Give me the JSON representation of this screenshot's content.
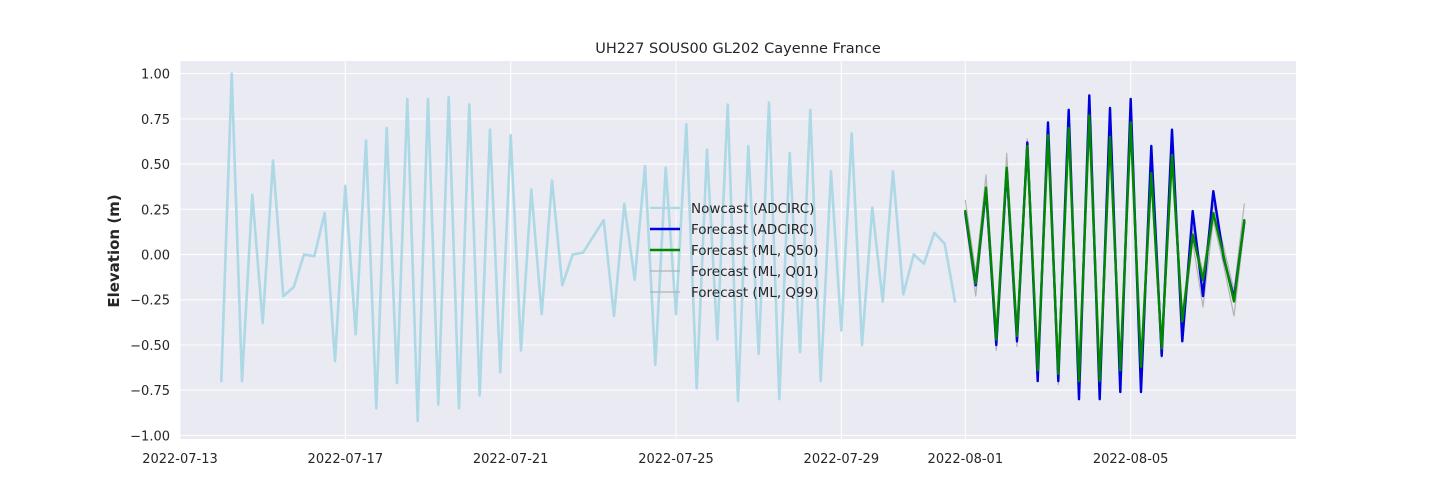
{
  "chart_data": {
    "type": "line",
    "title": "UH227 SOUS00 GL202 Cayenne France",
    "xlabel": "",
    "ylabel": "Elevation (m)",
    "x_axis_type": "date",
    "xlim": [
      "2022-07-13",
      "2022-08-09"
    ],
    "ylim": [
      -1.02,
      1.07
    ],
    "x_ticks": [
      "2022-07-13",
      "2022-07-17",
      "2022-07-21",
      "2022-07-25",
      "2022-07-29",
      "2022-08-01",
      "2022-08-05"
    ],
    "y_ticks": [
      -1.0,
      -0.75,
      -0.5,
      -0.25,
      0.0,
      0.25,
      0.5,
      0.75,
      1.0
    ],
    "y_tick_labels": [
      "−1.00",
      "−0.75",
      "−0.50",
      "−0.25",
      "0.00",
      "0.25",
      "0.50",
      "0.75",
      "1.00"
    ],
    "grid": true,
    "legend_position": "center",
    "series": [
      {
        "name": "Nowcast (ADCIRC)",
        "color": "#add8e6",
        "x": [
          "2022-07-14T00:00",
          "2022-07-14T06:00",
          "2022-07-14T12:00",
          "2022-07-14T18:00",
          "2022-07-15T00:00",
          "2022-07-15T06:00",
          "2022-07-15T12:00",
          "2022-07-15T18:00",
          "2022-07-16T00:00",
          "2022-07-16T06:00",
          "2022-07-16T12:00",
          "2022-07-16T18:00",
          "2022-07-17T00:00",
          "2022-07-17T06:00",
          "2022-07-17T12:00",
          "2022-07-17T18:00",
          "2022-07-18T00:00",
          "2022-07-18T06:00",
          "2022-07-18T12:00",
          "2022-07-18T18:00",
          "2022-07-19T00:00",
          "2022-07-19T06:00",
          "2022-07-19T12:00",
          "2022-07-19T18:00",
          "2022-07-20T00:00",
          "2022-07-20T06:00",
          "2022-07-20T12:00",
          "2022-07-20T18:00",
          "2022-07-21T00:00",
          "2022-07-21T06:00",
          "2022-07-21T12:00",
          "2022-07-21T18:00",
          "2022-07-22T00:00",
          "2022-07-22T06:00",
          "2022-07-22T12:00",
          "2022-07-22T18:00",
          "2022-07-23T00:00",
          "2022-07-23T06:00",
          "2022-07-23T12:00",
          "2022-07-23T18:00",
          "2022-07-24T00:00",
          "2022-07-24T06:00",
          "2022-07-24T12:00",
          "2022-07-24T18:00",
          "2022-07-25T00:00",
          "2022-07-25T06:00",
          "2022-07-25T12:00",
          "2022-07-25T18:00",
          "2022-07-26T00:00",
          "2022-07-26T06:00",
          "2022-07-26T12:00",
          "2022-07-26T18:00",
          "2022-07-27T00:00",
          "2022-07-27T06:00",
          "2022-07-27T12:00",
          "2022-07-27T18:00",
          "2022-07-28T00:00",
          "2022-07-28T06:00",
          "2022-07-28T12:00",
          "2022-07-28T18:00",
          "2022-07-29T00:00",
          "2022-07-29T06:00",
          "2022-07-29T12:00",
          "2022-07-29T18:00",
          "2022-07-30T00:00",
          "2022-07-30T06:00",
          "2022-07-30T12:00",
          "2022-07-30T18:00",
          "2022-07-31T00:00",
          "2022-07-31T06:00",
          "2022-07-31T12:00",
          "2022-07-31T18:00"
        ],
        "y": [
          -0.7,
          1.0,
          -0.7,
          0.33,
          -0.38,
          0.52,
          -0.23,
          -0.18,
          0.0,
          -0.01,
          0.23,
          -0.59,
          0.38,
          -0.44,
          0.63,
          -0.85,
          0.7,
          -0.71,
          0.86,
          -0.92,
          0.86,
          -0.83,
          0.87,
          -0.85,
          0.83,
          -0.78,
          0.69,
          -0.65,
          0.66,
          -0.53,
          0.36,
          -0.33,
          0.41,
          -0.17,
          0.0,
          0.01,
          0.1,
          0.19,
          -0.34,
          0.28,
          -0.14,
          0.49,
          -0.61,
          0.48,
          -0.33,
          0.72,
          -0.74,
          0.58,
          -0.47,
          0.83,
          -0.81,
          0.6,
          -0.55,
          0.84,
          -0.8,
          0.56,
          -0.54,
          0.8,
          -0.7,
          0.46,
          -0.42,
          0.67,
          -0.5,
          0.26,
          -0.26,
          0.46,
          -0.22,
          0.0,
          -0.05,
          0.12,
          0.06,
          -0.26
        ]
      },
      {
        "name": "Forecast (ADCIRC)",
        "color": "#0000dd",
        "x": [
          "2022-08-01T00:00",
          "2022-08-01T06:00",
          "2022-08-01T12:00",
          "2022-08-01T18:00",
          "2022-08-02T00:00",
          "2022-08-02T06:00",
          "2022-08-02T12:00",
          "2022-08-02T18:00",
          "2022-08-03T00:00",
          "2022-08-03T06:00",
          "2022-08-03T12:00",
          "2022-08-03T18:00",
          "2022-08-04T00:00",
          "2022-08-04T06:00",
          "2022-08-04T12:00",
          "2022-08-04T18:00",
          "2022-08-05T00:00",
          "2022-08-05T06:00",
          "2022-08-05T12:00",
          "2022-08-05T18:00",
          "2022-08-06T00:00",
          "2022-08-06T06:00",
          "2022-08-06T12:00",
          "2022-08-06T18:00",
          "2022-08-07T00:00",
          "2022-08-07T06:00",
          "2022-08-07T12:00",
          "2022-08-07T18:00"
        ],
        "y": [
          0.23,
          -0.17,
          0.36,
          -0.5,
          0.47,
          -0.48,
          0.62,
          -0.7,
          0.73,
          -0.7,
          0.8,
          -0.8,
          0.88,
          -0.8,
          0.81,
          -0.76,
          0.86,
          -0.76,
          0.6,
          -0.56,
          0.69,
          -0.48,
          0.24,
          -0.23,
          0.35,
          -0.02,
          -0.24,
          0.18
        ]
      },
      {
        "name": "Forecast (ML, Q50)",
        "color": "#008800",
        "x": [
          "2022-08-01T00:00",
          "2022-08-01T06:00",
          "2022-08-01T12:00",
          "2022-08-01T18:00",
          "2022-08-02T00:00",
          "2022-08-02T06:00",
          "2022-08-02T12:00",
          "2022-08-02T18:00",
          "2022-08-03T00:00",
          "2022-08-03T06:00",
          "2022-08-03T12:00",
          "2022-08-03T18:00",
          "2022-08-04T00:00",
          "2022-08-04T06:00",
          "2022-08-04T12:00",
          "2022-08-04T18:00",
          "2022-08-05T00:00",
          "2022-08-05T06:00",
          "2022-08-05T12:00",
          "2022-08-05T18:00",
          "2022-08-06T00:00",
          "2022-08-06T06:00",
          "2022-08-06T12:00",
          "2022-08-06T18:00",
          "2022-08-07T00:00",
          "2022-08-07T06:00",
          "2022-08-07T12:00",
          "2022-08-07T18:00"
        ],
        "y": [
          0.24,
          -0.16,
          0.37,
          -0.47,
          0.48,
          -0.45,
          0.6,
          -0.64,
          0.66,
          -0.66,
          0.7,
          -0.7,
          0.77,
          -0.7,
          0.65,
          -0.64,
          0.73,
          -0.62,
          0.45,
          -0.52,
          0.55,
          -0.37,
          0.11,
          -0.14,
          0.23,
          -0.01,
          -0.26,
          0.19
        ]
      },
      {
        "name": "Forecast (ML, Q01)",
        "color": "#b3b3b3",
        "x": [
          "2022-08-01T00:00",
          "2022-08-01T06:00",
          "2022-08-01T12:00",
          "2022-08-01T18:00",
          "2022-08-02T00:00",
          "2022-08-02T06:00",
          "2022-08-02T12:00",
          "2022-08-02T18:00",
          "2022-08-03T00:00",
          "2022-08-03T06:00",
          "2022-08-03T12:00",
          "2022-08-03T18:00",
          "2022-08-04T00:00",
          "2022-08-04T06:00",
          "2022-08-04T12:00",
          "2022-08-04T18:00",
          "2022-08-05T00:00",
          "2022-08-05T06:00",
          "2022-08-05T12:00",
          "2022-08-05T18:00",
          "2022-08-06T00:00",
          "2022-08-06T06:00",
          "2022-08-06T12:00",
          "2022-08-06T18:00",
          "2022-08-07T00:00",
          "2022-08-07T06:00",
          "2022-08-07T12:00",
          "2022-08-07T18:00"
        ],
        "y": [
          0.2,
          -0.23,
          0.32,
          -0.53,
          0.43,
          -0.51,
          0.56,
          -0.7,
          0.62,
          -0.72,
          0.66,
          -0.74,
          0.72,
          -0.75,
          0.6,
          -0.7,
          0.68,
          -0.68,
          0.4,
          -0.57,
          0.5,
          -0.43,
          0.07,
          -0.29,
          0.19,
          -0.06,
          -0.34,
          0.15
        ]
      },
      {
        "name": "Forecast (ML, Q99)",
        "color": "#b3b3b3",
        "x": [
          "2022-08-01T00:00",
          "2022-08-01T06:00",
          "2022-08-01T12:00",
          "2022-08-01T18:00",
          "2022-08-02T00:00",
          "2022-08-02T06:00",
          "2022-08-02T12:00",
          "2022-08-02T18:00",
          "2022-08-03T00:00",
          "2022-08-03T06:00",
          "2022-08-03T12:00",
          "2022-08-03T18:00",
          "2022-08-04T00:00",
          "2022-08-04T06:00",
          "2022-08-04T12:00",
          "2022-08-04T18:00",
          "2022-08-05T00:00",
          "2022-08-05T06:00",
          "2022-08-05T12:00",
          "2022-08-05T18:00",
          "2022-08-06T00:00",
          "2022-08-06T06:00",
          "2022-08-06T12:00",
          "2022-08-06T18:00",
          "2022-08-07T00:00",
          "2022-08-07T06:00",
          "2022-08-07T12:00",
          "2022-08-07T18:00"
        ],
        "y": [
          0.3,
          -0.1,
          0.44,
          -0.41,
          0.56,
          -0.39,
          0.64,
          -0.6,
          0.7,
          -0.62,
          0.74,
          -0.66,
          0.81,
          -0.66,
          0.69,
          -0.6,
          0.77,
          -0.58,
          0.5,
          -0.48,
          0.6,
          -0.32,
          0.15,
          -0.1,
          0.28,
          0.04,
          -0.2,
          0.28
        ]
      }
    ]
  }
}
